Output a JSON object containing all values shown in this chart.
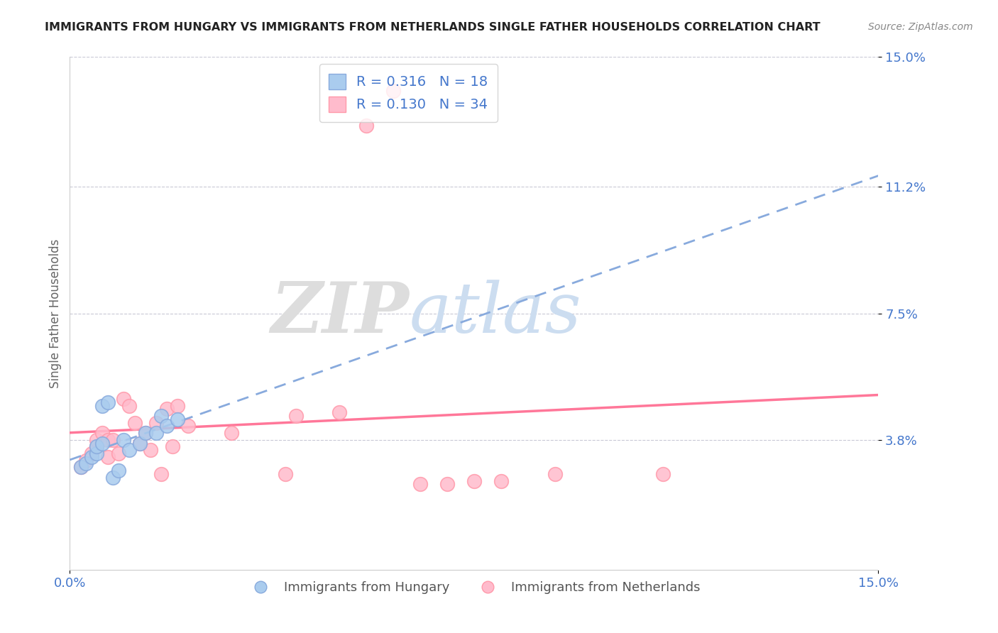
{
  "title": "IMMIGRANTS FROM HUNGARY VS IMMIGRANTS FROM NETHERLANDS SINGLE FATHER HOUSEHOLDS CORRELATION CHART",
  "source": "Source: ZipAtlas.com",
  "ylabel": "Single Father Households",
  "xlim": [
    0.0,
    0.15
  ],
  "ylim": [
    0.0,
    0.15
  ],
  "yticks": [
    0.038,
    0.075,
    0.112,
    0.15
  ],
  "ytick_labels": [
    "3.8%",
    "7.5%",
    "11.2%",
    "15.0%"
  ],
  "xticks": [
    0.0,
    0.15
  ],
  "xtick_labels": [
    "0.0%",
    "15.0%"
  ],
  "hungary_color": "#AACCEE",
  "hungary_edge": "#88AADD",
  "netherlands_color": "#FFBBCC",
  "netherlands_edge": "#FF99AA",
  "hungary_line_color": "#88AADD",
  "netherlands_line_color": "#FF7799",
  "hungary_R": 0.316,
  "hungary_N": 18,
  "netherlands_R": 0.13,
  "netherlands_N": 34,
  "hungary_scatter_x": [
    0.002,
    0.003,
    0.004,
    0.005,
    0.005,
    0.006,
    0.006,
    0.007,
    0.008,
    0.009,
    0.01,
    0.011,
    0.013,
    0.014,
    0.016,
    0.017,
    0.018,
    0.02
  ],
  "hungary_scatter_y": [
    0.03,
    0.031,
    0.033,
    0.034,
    0.036,
    0.037,
    0.048,
    0.049,
    0.027,
    0.029,
    0.038,
    0.035,
    0.037,
    0.04,
    0.04,
    0.045,
    0.042,
    0.044
  ],
  "netherlands_scatter_x": [
    0.002,
    0.003,
    0.004,
    0.005,
    0.005,
    0.006,
    0.007,
    0.007,
    0.008,
    0.009,
    0.01,
    0.011,
    0.012,
    0.013,
    0.014,
    0.015,
    0.016,
    0.017,
    0.018,
    0.019,
    0.02,
    0.022,
    0.03,
    0.04,
    0.042,
    0.05,
    0.055,
    0.06,
    0.065,
    0.07,
    0.075,
    0.08,
    0.09,
    0.11
  ],
  "netherlands_scatter_y": [
    0.03,
    0.032,
    0.034,
    0.036,
    0.038,
    0.04,
    0.033,
    0.038,
    0.038,
    0.034,
    0.05,
    0.048,
    0.043,
    0.037,
    0.04,
    0.035,
    0.043,
    0.028,
    0.047,
    0.036,
    0.048,
    0.042,
    0.04,
    0.028,
    0.045,
    0.046,
    0.13,
    0.14,
    0.025,
    0.025,
    0.026,
    0.026,
    0.028,
    0.028
  ],
  "watermark_zip": "ZIP",
  "watermark_atlas": "atlas",
  "background_color": "#ffffff",
  "grid_color": "#BBBBCC"
}
